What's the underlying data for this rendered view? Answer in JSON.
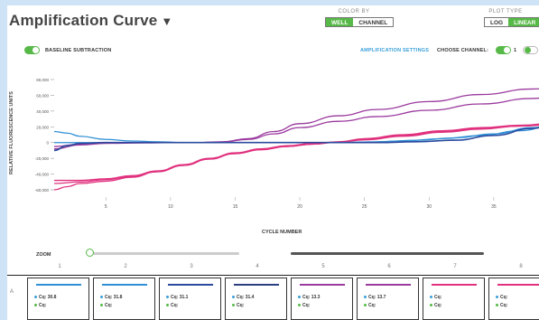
{
  "header": {
    "title": "Amplification Curve",
    "caret": "▼",
    "color_by": {
      "label": "COLOR BY",
      "options": [
        "WELL",
        "CHANNEL"
      ],
      "selected": "WELL"
    },
    "plot_type": {
      "label": "PLOT TYPE",
      "options": [
        "LOG",
        "LINEAR"
      ],
      "selected": "LINEAR"
    }
  },
  "toolbar": {
    "baseline_label": "BASELINE SUBTRACTION",
    "baseline_on": true,
    "settings_link": "AMPLIFICATION SETTINGS",
    "choose_channel_label": "CHOOSE CHANNEL:",
    "channel_1": "1"
  },
  "chart_data": {
    "type": "line",
    "ylabel": "RELATIVE FLUORESCENCE UNITS",
    "xlabel": "CYCLE NUMBER",
    "yticks": [
      "80,000",
      "60,000",
      "40,000",
      "20,000",
      "0",
      "-20,000",
      "-40,000",
      "-60,000"
    ],
    "xticks": [
      "5",
      "10",
      "15",
      "20",
      "25",
      "30",
      "35"
    ],
    "xlim": [
      1,
      40
    ],
    "ylim": [
      -60000,
      80000
    ],
    "colors": {
      "purple": "#9b3a9e",
      "magenta": "#e0317e",
      "blue": "#2f8fd6",
      "navy": "#2b4a9e"
    },
    "series": [
      {
        "color": "purple",
        "x": [
          1,
          3,
          5,
          8,
          10,
          12,
          14,
          16,
          18,
          20,
          23,
          26,
          30,
          34,
          38,
          40
        ],
        "y": [
          -5000,
          -2000,
          -500,
          0,
          0,
          0,
          1000,
          5000,
          14000,
          24000,
          34000,
          42000,
          52000,
          61000,
          68000,
          70000
        ]
      },
      {
        "color": "purple",
        "x": [
          1,
          3,
          5,
          8,
          10,
          12,
          14,
          16,
          18,
          20,
          23,
          26,
          30,
          34,
          38,
          40
        ],
        "y": [
          -8000,
          -3000,
          -1000,
          -500,
          0,
          0,
          800,
          4000,
          11000,
          19000,
          27000,
          33000,
          41000,
          49000,
          56000,
          59000
        ]
      },
      {
        "color": "magenta",
        "x": [
          1,
          3,
          5,
          7,
          9,
          11,
          13,
          15,
          17,
          19,
          21,
          23,
          25,
          28,
          31,
          34,
          37,
          40
        ],
        "y": [
          -48000,
          -48000,
          -46000,
          -42000,
          -36000,
          -28000,
          -20000,
          -13000,
          -8000,
          -4000,
          -1000,
          1000,
          5000,
          10000,
          15000,
          19000,
          22000,
          25000
        ]
      },
      {
        "color": "magenta",
        "x": [
          1,
          2,
          3,
          5,
          7,
          9,
          11,
          13,
          15,
          17,
          19,
          21,
          23,
          25,
          28,
          31,
          34,
          37,
          40
        ],
        "y": [
          -60000,
          -56000,
          -52000,
          -49000,
          -44000,
          -37000,
          -29000,
          -21000,
          -14000,
          -9000,
          -5000,
          -2000,
          1000,
          4000,
          9000,
          14000,
          18000,
          21000,
          24000
        ]
      },
      {
        "color": "magenta",
        "x": [
          1,
          3,
          5,
          7,
          9,
          11,
          13,
          15,
          17,
          19,
          21,
          23,
          25,
          28,
          31,
          34,
          37,
          40
        ],
        "y": [
          -52000,
          -50000,
          -47000,
          -43000,
          -37000,
          -29000,
          -21000,
          -14000,
          -9000,
          -5000,
          -2000,
          500,
          3500,
          8000,
          13000,
          17000,
          21000,
          23000
        ]
      },
      {
        "color": "blue",
        "x": [
          1,
          2,
          3,
          5,
          7,
          9,
          11,
          13,
          15,
          17,
          19,
          21,
          23,
          25,
          28,
          31,
          34,
          37,
          40
        ],
        "y": [
          14000,
          12000,
          8000,
          4000,
          2000,
          1000,
          0,
          0,
          0,
          0,
          0,
          0,
          0,
          500,
          2000,
          5000,
          9000,
          15000,
          24000
        ]
      },
      {
        "color": "blue",
        "x": [
          1,
          3,
          5,
          8,
          11,
          14,
          17,
          20,
          23,
          26,
          29,
          32,
          35,
          38,
          40
        ],
        "y": [
          0,
          0,
          0,
          0,
          0,
          0,
          0,
          0,
          0,
          1000,
          3000,
          6000,
          11000,
          19000,
          25000
        ]
      },
      {
        "color": "navy",
        "x": [
          1,
          2,
          3,
          5,
          8,
          11,
          14,
          17,
          20,
          23,
          26,
          29,
          32,
          35,
          38,
          40
        ],
        "y": [
          -10000,
          -4000,
          -1000,
          0,
          0,
          0,
          0,
          0,
          0,
          0,
          0,
          1000,
          3000,
          9000,
          18000,
          26000
        ]
      }
    ]
  },
  "zoom": {
    "label": "ZOOM"
  },
  "plate": {
    "columns": [
      "1",
      "2",
      "3",
      "4",
      "5",
      "6",
      "7",
      "8"
    ],
    "row": "A",
    "wells": [
      {
        "bar_color": "#2f8fd6",
        "cq1": "Cq: 30.8",
        "cq2": "Cq:"
      },
      {
        "bar_color": "#2f8fd6",
        "cq1": "Cq: 31.8",
        "cq2": "Cq:"
      },
      {
        "bar_color": "#2b4a9e",
        "cq1": "Cq: 31.1",
        "cq2": "Cq:"
      },
      {
        "bar_color": "#2b3f80",
        "cq1": "Cq: 31.4",
        "cq2": "Cq:"
      },
      {
        "bar_color": "#9b3a9e",
        "cq1": "Cq: 13.3",
        "cq2": "Cq:"
      },
      {
        "bar_color": "#9b3a9e",
        "cq1": "Cq: 13.7",
        "cq2": "Cq:"
      },
      {
        "bar_color": "#e0317e",
        "cq1": "Cq:",
        "cq2": "Cq:"
      },
      {
        "bar_color": "#e0317e",
        "cq1": "Cq:",
        "cq2": "Cq:"
      }
    ],
    "cq_dot_color_1": "#3a9fd8",
    "cq_dot_color_2": "#57b947"
  }
}
